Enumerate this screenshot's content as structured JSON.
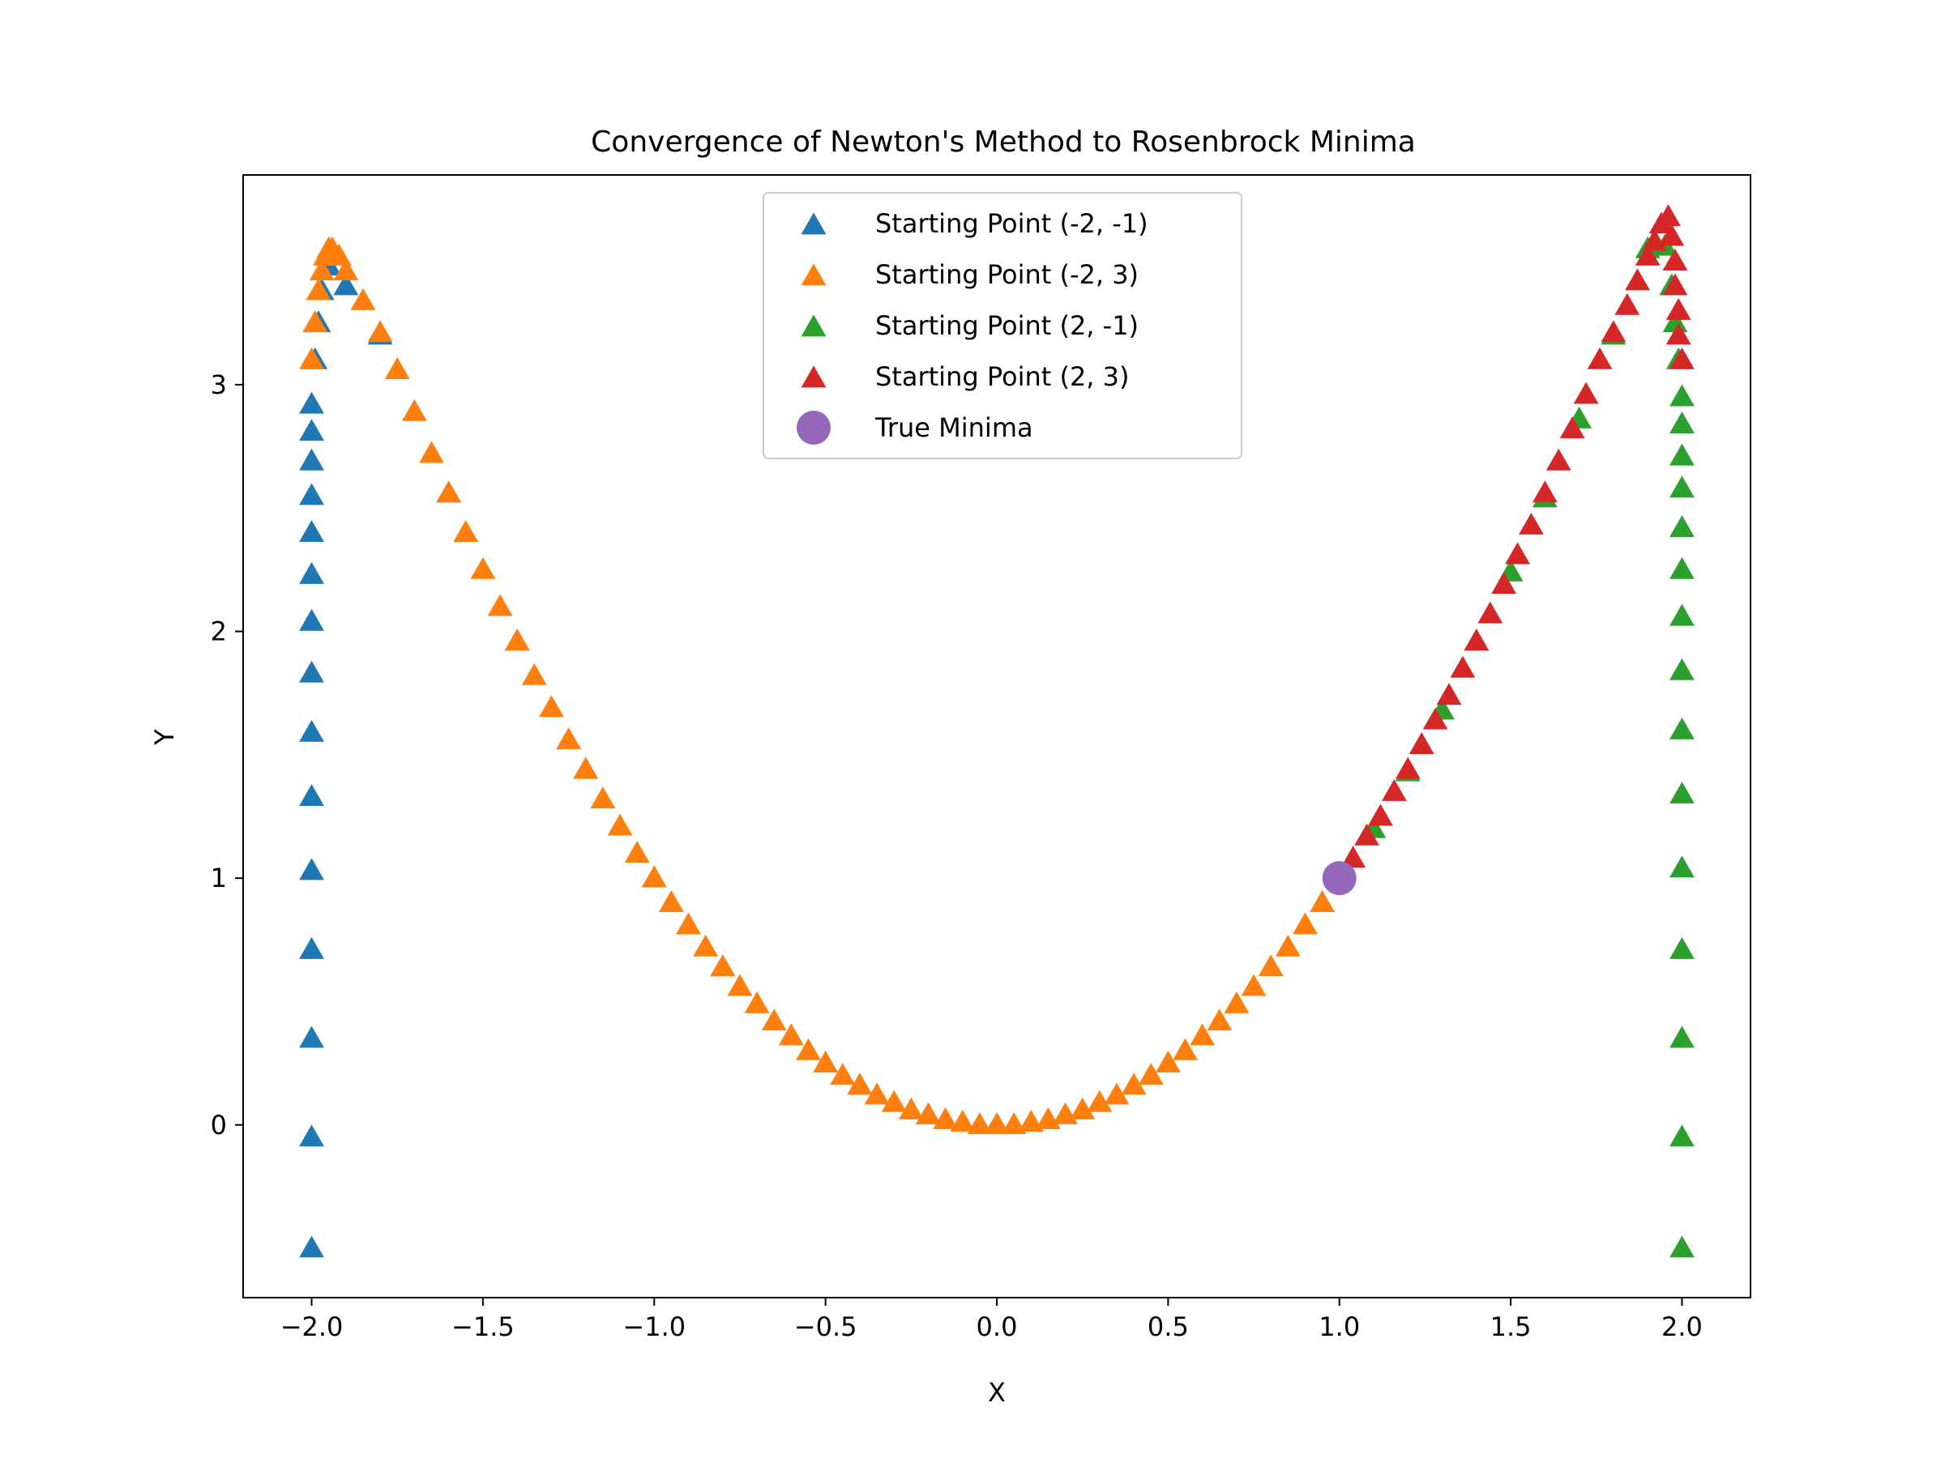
{
  "chart_data": {
    "type": "scatter",
    "title": "Convergence of Newton's Method to Rosenbrock Minima",
    "xlabel": "X",
    "ylabel": "Y",
    "xlim": [
      -2.2,
      2.2
    ],
    "ylim": [
      -0.7,
      3.85
    ],
    "xticks": [
      -2.0,
      -1.5,
      -1.0,
      -0.5,
      0.0,
      0.5,
      1.0,
      1.5,
      2.0
    ],
    "xtick_labels": [
      "−2.0",
      "−1.5",
      "−1.0",
      "−0.5",
      "0.0",
      "0.5",
      "1.0",
      "1.5",
      "2.0"
    ],
    "yticks": [
      0,
      1,
      2,
      3
    ],
    "ytick_labels": [
      "0",
      "1",
      "2",
      "3"
    ],
    "grid": false,
    "legend_position": "top-center",
    "series": [
      {
        "name": "Starting Point (-2, -1)",
        "color": "#1f77b4",
        "marker": "triangle",
        "x": [
          -2.0,
          -2.0,
          -2.0,
          -2.0,
          -2.0,
          -2.0,
          -2.0,
          -2.0,
          -2.0,
          -2.0,
          -2.0,
          -2.0,
          -2.0,
          -2.0,
          -2.0,
          -1.99,
          -1.98,
          -1.97,
          -1.95,
          -1.9,
          -1.8,
          -1.6,
          -1.4,
          -1.2,
          -1.0,
          -0.8,
          -0.6,
          -0.4,
          -0.2,
          0.0
        ],
        "y": [
          -0.5,
          -0.05,
          0.35,
          0.71,
          1.03,
          1.33,
          1.59,
          1.83,
          2.04,
          2.23,
          2.4,
          2.55,
          2.69,
          2.81,
          2.92,
          3.1,
          3.25,
          3.38,
          3.48,
          3.4,
          3.2,
          2.56,
          1.96,
          1.44,
          1.0,
          0.64,
          0.36,
          0.16,
          0.04,
          0.0
        ]
      },
      {
        "name": "Starting Point (-2, 3)",
        "color": "#ff7f0e",
        "marker": "triangle",
        "x": [
          -2.0,
          -1.99,
          -1.98,
          -1.97,
          -1.96,
          -1.95,
          -1.94,
          -1.92,
          -1.9,
          -1.85,
          -1.8,
          -1.75,
          -1.7,
          -1.65,
          -1.6,
          -1.55,
          -1.5,
          -1.45,
          -1.4,
          -1.35,
          -1.3,
          -1.25,
          -1.2,
          -1.15,
          -1.1,
          -1.05,
          -1.0,
          -0.95,
          -0.9,
          -0.85,
          -0.8,
          -0.75,
          -0.7,
          -0.65,
          -0.6,
          -0.55,
          -0.5,
          -0.45,
          -0.4,
          -0.35,
          -0.3,
          -0.25,
          -0.2,
          -0.15,
          -0.1,
          -0.05,
          0.0,
          0.05,
          0.1,
          0.15,
          0.2,
          0.25,
          0.3,
          0.35,
          0.4,
          0.45,
          0.5,
          0.55,
          0.6,
          0.65,
          0.7,
          0.75,
          0.8,
          0.85,
          0.9,
          0.95,
          1.0
        ],
        "y": [
          3.1,
          3.25,
          3.38,
          3.46,
          3.52,
          3.55,
          3.55,
          3.52,
          3.46,
          3.34,
          3.21,
          3.06,
          2.89,
          2.72,
          2.56,
          2.4,
          2.25,
          2.1,
          1.96,
          1.82,
          1.69,
          1.56,
          1.44,
          1.32,
          1.21,
          1.1,
          1.0,
          0.9,
          0.81,
          0.72,
          0.64,
          0.56,
          0.49,
          0.42,
          0.36,
          0.3,
          0.25,
          0.2,
          0.16,
          0.12,
          0.09,
          0.06,
          0.04,
          0.02,
          0.01,
          0.0,
          0.0,
          0.0,
          0.01,
          0.02,
          0.04,
          0.06,
          0.09,
          0.12,
          0.16,
          0.2,
          0.25,
          0.3,
          0.36,
          0.42,
          0.49,
          0.56,
          0.64,
          0.72,
          0.81,
          0.9,
          1.0
        ]
      },
      {
        "name": "Starting Point (2, -1)",
        "color": "#2ca02c",
        "marker": "triangle",
        "x": [
          2.0,
          2.0,
          2.0,
          2.0,
          2.0,
          2.0,
          2.0,
          2.0,
          2.0,
          2.0,
          2.0,
          2.0,
          2.0,
          2.0,
          2.0,
          1.99,
          1.98,
          1.97,
          1.95,
          1.9,
          1.8,
          1.7,
          1.6,
          1.5,
          1.4,
          1.3,
          1.2,
          1.1,
          1.0
        ],
        "y": [
          -0.5,
          -0.05,
          0.35,
          0.71,
          1.04,
          1.34,
          1.6,
          1.84,
          2.06,
          2.25,
          2.42,
          2.58,
          2.71,
          2.84,
          2.95,
          3.1,
          3.25,
          3.4,
          3.56,
          3.55,
          3.2,
          2.86,
          2.54,
          2.24,
          1.96,
          1.68,
          1.43,
          1.2,
          1.0
        ]
      },
      {
        "name": "Starting Point (2, 3)",
        "color": "#d62728",
        "marker": "triangle",
        "x": [
          2.0,
          1.99,
          1.99,
          1.98,
          1.98,
          1.97,
          1.96,
          1.94,
          1.92,
          1.9,
          1.87,
          1.84,
          1.8,
          1.76,
          1.72,
          1.68,
          1.64,
          1.6,
          1.56,
          1.52,
          1.48,
          1.44,
          1.4,
          1.36,
          1.32,
          1.28,
          1.24,
          1.2,
          1.16,
          1.12,
          1.08,
          1.04,
          1.0
        ],
        "y": [
          3.1,
          3.2,
          3.3,
          3.4,
          3.5,
          3.6,
          3.68,
          3.65,
          3.58,
          3.52,
          3.42,
          3.32,
          3.21,
          3.1,
          2.96,
          2.82,
          2.69,
          2.56,
          2.43,
          2.31,
          2.19,
          2.07,
          1.96,
          1.85,
          1.74,
          1.64,
          1.54,
          1.44,
          1.35,
          1.25,
          1.17,
          1.08,
          1.0
        ]
      },
      {
        "name": "True Minima",
        "color": "#9467bd",
        "marker": "circle",
        "x": [
          1.0
        ],
        "y": [
          1.0
        ]
      }
    ]
  }
}
